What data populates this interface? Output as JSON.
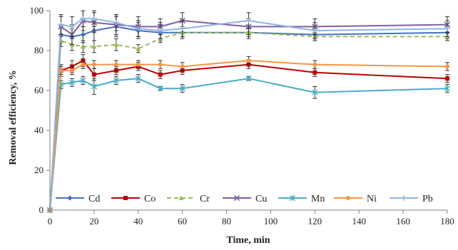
{
  "chart_data": {
    "type": "line",
    "title": "",
    "xlabel": "Time, min",
    "ylabel": "Removal efficiency, %",
    "xlim": [
      0,
      180
    ],
    "ylim": [
      0,
      100
    ],
    "x_ticks": [
      0,
      20,
      40,
      60,
      80,
      100,
      120,
      140,
      160,
      180
    ],
    "y_ticks": [
      0,
      20,
      40,
      60,
      80,
      100
    ],
    "grid": false,
    "legend_position": "bottom",
    "x": [
      0,
      5,
      10,
      15,
      20,
      30,
      40,
      50,
      60,
      90,
      120,
      180
    ],
    "series": [
      {
        "name": "Cd",
        "color": "#4472c4",
        "marker": "diamond",
        "dashed": false,
        "values": [
          0,
          88,
          87,
          88,
          90,
          92,
          90,
          89,
          89,
          89,
          88,
          89
        ],
        "errors": [
          0,
          4,
          4,
          4,
          5,
          5,
          4,
          4,
          3,
          3,
          3,
          3
        ]
      },
      {
        "name": "Co",
        "color": "#c00000",
        "marker": "square",
        "dashed": false,
        "values": [
          0,
          70,
          72,
          75,
          68,
          70,
          72,
          68,
          70,
          73,
          69,
          66
        ],
        "errors": [
          0,
          3,
          3,
          3,
          3,
          2,
          2,
          2,
          2,
          2,
          2,
          2
        ]
      },
      {
        "name": "Cr",
        "color": "#9bbb59",
        "marker": "triangle",
        "dashed": true,
        "values": [
          0,
          85,
          83,
          82,
          82,
          83,
          81,
          86,
          89,
          89,
          87,
          87
        ],
        "errors": [
          0,
          3,
          3,
          3,
          3,
          3,
          2,
          2,
          2,
          2,
          2,
          2
        ]
      },
      {
        "name": "Cu",
        "color": "#7f60a0",
        "marker": "x",
        "dashed": false,
        "values": [
          0,
          92,
          88,
          95,
          94,
          93,
          92,
          92,
          95,
          92,
          92,
          93
        ],
        "errors": [
          0,
          5,
          5,
          5,
          5,
          5,
          5,
          4,
          4,
          4,
          4,
          4
        ]
      },
      {
        "name": "Mn",
        "color": "#4bacc6",
        "marker": "asterisk",
        "dashed": false,
        "values": [
          0,
          63,
          64,
          65,
          62,
          65,
          66,
          61,
          61,
          66,
          59,
          61
        ],
        "errors": [
          0,
          2,
          2,
          2,
          4,
          2,
          2,
          1,
          2,
          1,
          3,
          2
        ]
      },
      {
        "name": "Ni",
        "color": "#f79646",
        "marker": "circle",
        "dashed": false,
        "values": [
          0,
          70,
          70,
          73,
          73,
          73,
          73,
          73,
          72,
          75,
          73,
          72
        ],
        "errors": [
          0,
          2,
          2,
          2,
          2,
          2,
          2,
          2,
          2,
          2,
          2,
          2
        ]
      },
      {
        "name": "Pb",
        "color": "#8eb4e3",
        "marker": "plus",
        "dashed": false,
        "values": [
          0,
          93,
          92,
          96,
          96,
          94,
          91,
          90,
          91,
          95,
          90,
          91
        ],
        "errors": [
          0,
          5,
          5,
          4,
          4,
          4,
          4,
          4,
          4,
          4,
          4,
          4
        ]
      }
    ]
  }
}
